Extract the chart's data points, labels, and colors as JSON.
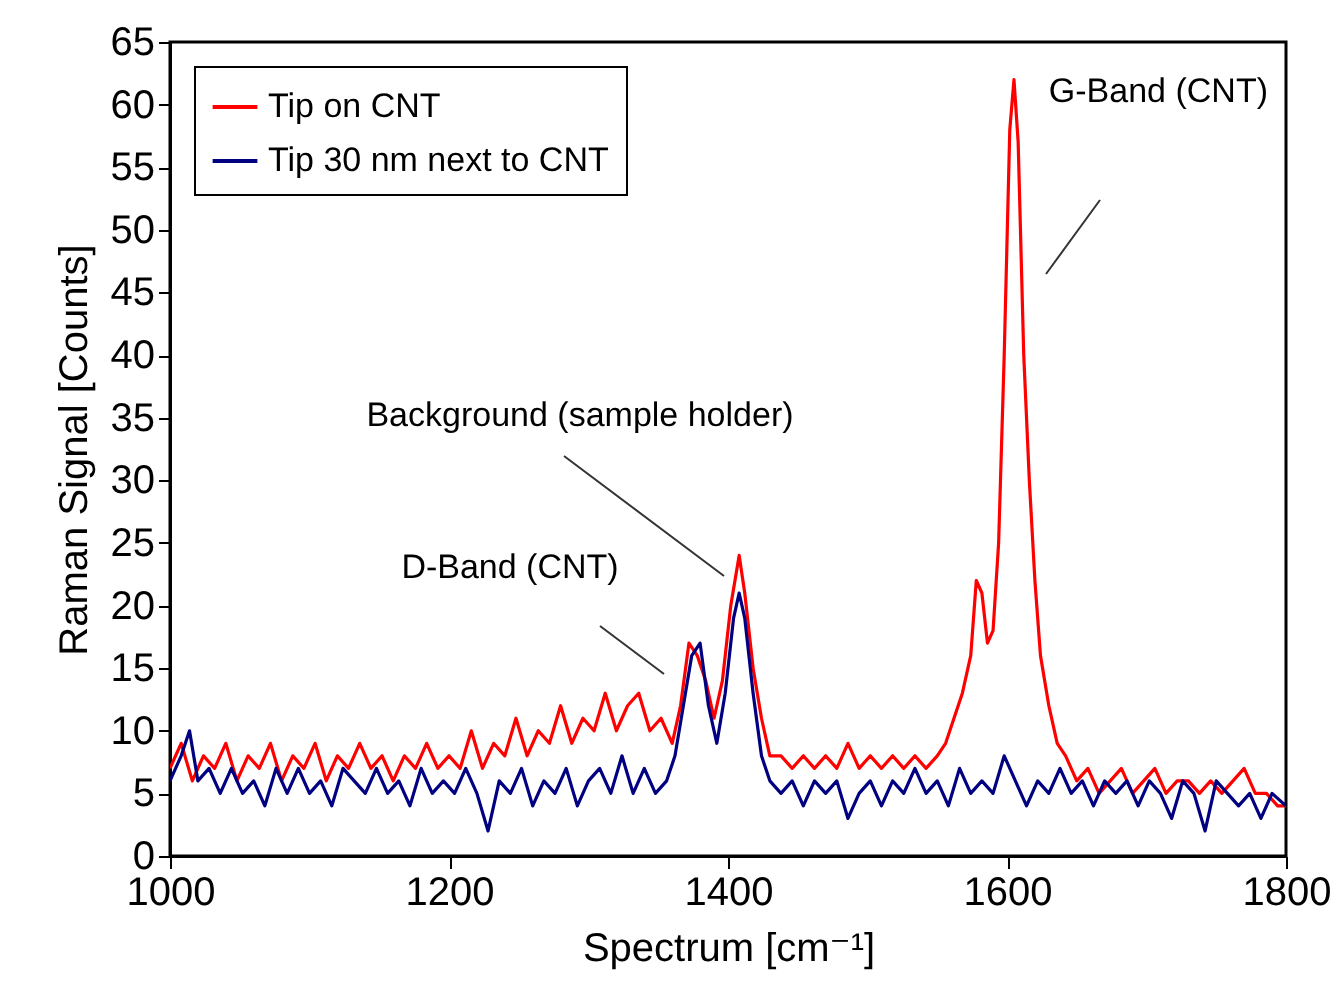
{
  "chart_data": {
    "type": "line",
    "xlabel": "Spectrum [cm⁻¹]",
    "ylabel": "Raman Signal [Counts]",
    "xlim": [
      1000,
      1800
    ],
    "xticks": [
      1000,
      1200,
      1400,
      1600,
      1800
    ],
    "ylim": [
      0,
      65
    ],
    "yticks": [
      0,
      5,
      10,
      15,
      20,
      25,
      30,
      35,
      40,
      45,
      50,
      55,
      60,
      65
    ],
    "grid": false,
    "legend": "top left",
    "marker": "none",
    "line_style": "solid",
    "annotations": [
      "D-Band (CNT)",
      "Background (sample holder)",
      "G-Band (CNT)"
    ],
    "series": [
      {
        "name": "Tip on CNT",
        "color": "#ff0000",
        "x": [
          1000,
          1008,
          1016,
          1024,
          1032,
          1040,
          1048,
          1056,
          1064,
          1072,
          1080,
          1088,
          1096,
          1104,
          1112,
          1120,
          1128,
          1136,
          1144,
          1152,
          1160,
          1168,
          1176,
          1184,
          1192,
          1200,
          1208,
          1216,
          1224,
          1232,
          1240,
          1248,
          1256,
          1264,
          1272,
          1280,
          1288,
          1296,
          1304,
          1312,
          1320,
          1328,
          1336,
          1344,
          1352,
          1360,
          1366,
          1372,
          1378,
          1384,
          1390,
          1396,
          1402,
          1408,
          1412,
          1418,
          1424,
          1430,
          1438,
          1446,
          1454,
          1462,
          1470,
          1478,
          1486,
          1494,
          1502,
          1510,
          1518,
          1526,
          1534,
          1542,
          1550,
          1556,
          1562,
          1568,
          1574,
          1578,
          1582,
          1586,
          1590,
          1594,
          1598,
          1602,
          1605,
          1608,
          1612,
          1616,
          1620,
          1624,
          1630,
          1636,
          1642,
          1650,
          1658,
          1666,
          1674,
          1682,
          1690,
          1698,
          1706,
          1714,
          1722,
          1730,
          1738,
          1746,
          1754,
          1762,
          1770,
          1778,
          1786,
          1794,
          1800
        ],
        "values": [
          7,
          9,
          6,
          8,
          7,
          9,
          6,
          8,
          7,
          9,
          6,
          8,
          7,
          9,
          6,
          8,
          7,
          9,
          7,
          8,
          6,
          8,
          7,
          9,
          7,
          8,
          7,
          10,
          7,
          9,
          8,
          11,
          8,
          10,
          9,
          12,
          9,
          11,
          10,
          13,
          10,
          12,
          13,
          10,
          11,
          9,
          12,
          17,
          16,
          14,
          11,
          14,
          20,
          24,
          21,
          15,
          11,
          8,
          8,
          7,
          8,
          7,
          8,
          7,
          9,
          7,
          8,
          7,
          8,
          7,
          8,
          7,
          8,
          9,
          11,
          13,
          16,
          22,
          21,
          17,
          18,
          25,
          40,
          58,
          62,
          57,
          40,
          30,
          22,
          16,
          12,
          9,
          8,
          6,
          7,
          5,
          6,
          7,
          5,
          6,
          7,
          5,
          6,
          6,
          5,
          6,
          5,
          6,
          7,
          5,
          5,
          4,
          4
        ]
      },
      {
        "name": "Tip 30 nm next to CNT",
        "color": "#000080",
        "x": [
          1000,
          1008,
          1014,
          1020,
          1028,
          1036,
          1044,
          1052,
          1060,
          1068,
          1076,
          1084,
          1092,
          1100,
          1108,
          1116,
          1124,
          1132,
          1140,
          1148,
          1156,
          1164,
          1172,
          1180,
          1188,
          1196,
          1204,
          1212,
          1220,
          1228,
          1236,
          1244,
          1252,
          1260,
          1268,
          1276,
          1284,
          1292,
          1300,
          1308,
          1316,
          1324,
          1332,
          1340,
          1348,
          1356,
          1362,
          1368,
          1374,
          1380,
          1386,
          1392,
          1398,
          1404,
          1408,
          1412,
          1418,
          1424,
          1430,
          1438,
          1446,
          1454,
          1462,
          1470,
          1478,
          1486,
          1494,
          1502,
          1510,
          1518,
          1526,
          1534,
          1542,
          1550,
          1558,
          1566,
          1574,
          1582,
          1590,
          1598,
          1606,
          1614,
          1622,
          1630,
          1638,
          1646,
          1654,
          1662,
          1670,
          1678,
          1686,
          1694,
          1702,
          1710,
          1718,
          1726,
          1734,
          1742,
          1750,
          1758,
          1766,
          1774,
          1782,
          1790,
          1800
        ],
        "values": [
          6,
          8,
          10,
          6,
          7,
          5,
          7,
          5,
          6,
          4,
          7,
          5,
          7,
          5,
          6,
          4,
          7,
          6,
          5,
          7,
          5,
          6,
          4,
          7,
          5,
          6,
          5,
          7,
          5,
          2,
          6,
          5,
          7,
          4,
          6,
          5,
          7,
          4,
          6,
          7,
          5,
          8,
          5,
          7,
          5,
          6,
          8,
          12,
          16,
          17,
          12,
          9,
          13,
          19,
          21,
          19,
          13,
          8,
          6,
          5,
          6,
          4,
          6,
          5,
          6,
          3,
          5,
          6,
          4,
          6,
          5,
          7,
          5,
          6,
          4,
          7,
          5,
          6,
          5,
          8,
          6,
          4,
          6,
          5,
          7,
          5,
          6,
          4,
          6,
          5,
          6,
          4,
          6,
          5,
          3,
          6,
          5,
          2,
          6,
          5,
          4,
          5,
          3,
          5,
          4
        ]
      }
    ]
  }
}
